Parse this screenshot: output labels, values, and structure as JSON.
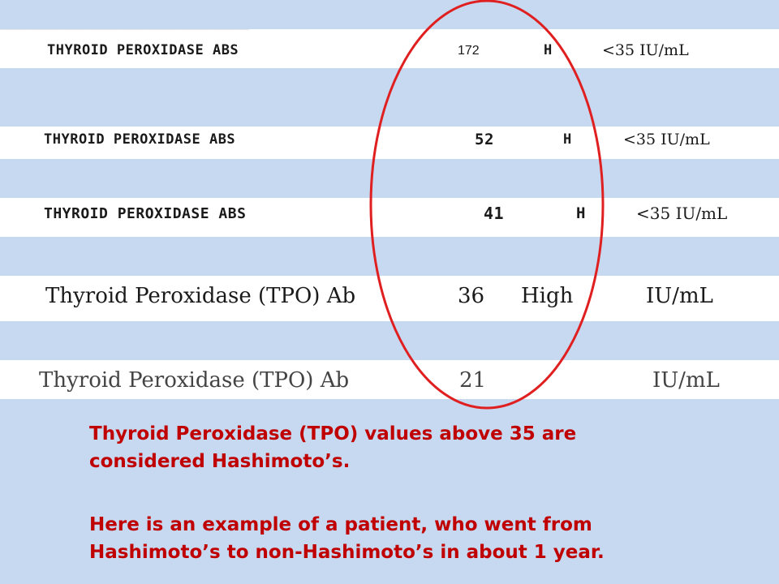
{
  "colors": {
    "background": "#c6d9f0",
    "row_fill": "#ffffff",
    "circle_stroke": "#e02020",
    "caption_text": "#c00000"
  },
  "rows": [
    {
      "label": "THYROID PEROXIDASE ABS",
      "value": "172",
      "flag": "H",
      "reference": "<35 IU/mL"
    },
    {
      "label": "THYROID PEROXIDASE ABS",
      "value": "52",
      "flag": "H",
      "reference": "<35 IU/mL"
    },
    {
      "label": "THYROID PEROXIDASE ABS",
      "value": "41",
      "flag": "H",
      "reference": "<35 IU/mL"
    },
    {
      "label": "Thyroid Peroxidase (TPO) Ab",
      "value": "36",
      "flag": "High",
      "reference": "IU/mL"
    },
    {
      "label": "Thyroid Peroxidase (TPO) Ab",
      "value": "21",
      "flag": "",
      "reference": "IU/mL"
    }
  ],
  "caption": {
    "line1": "Thyroid Peroxidase (TPO) values above 35 are",
    "line2": "considered Hashimoto’s.",
    "line3": "Here is an example of a patient, who went from",
    "line4": "Hashimoto’s to non-Hashimoto’s in about 1 year."
  }
}
